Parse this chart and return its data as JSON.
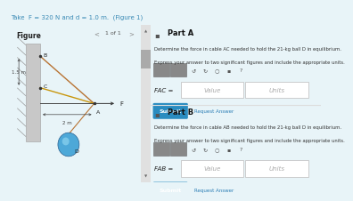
{
  "bg_color": "#e8f4f8",
  "header_bg": "#daeef6",
  "header_text": "Take  F = 320 N and d = 1.0 m.  (Figure 1)",
  "header_text_color": "#3a8ab5",
  "figure_label": "Figure",
  "nav_text": "1 of 1",
  "part_a_title": "Part A",
  "part_a_desc1": "Determine the force in cable AC needed to hold the 21-kg ball D in equilibrium.",
  "part_a_desc2": "Express your answer to two significant figures and include the appropriate units.",
  "part_a_label": "FAC =",
  "part_b_title": "Part B",
  "part_b_desc1": "Determine the force in cable AB needed to hold the 21-kg ball D in equilibrium.",
  "part_b_desc2": "Express your answer to two significant figures and include the appropriate units.",
  "part_b_label": "FAB =",
  "value_placeholder": "Value",
  "units_placeholder": "Units",
  "submit_text": "Submit",
  "request_text": "Request Answer",
  "wall_color": "#c8c8c8",
  "wall_edge": "#aaaaaa",
  "hatch_color": "#999999",
  "cable_AB_color": "#b87333",
  "cable_AC_color": "#c8960c",
  "cable_AD_color": "#b87333",
  "dim_color": "#444444",
  "ball_color_main": "#4da8d8",
  "ball_color_light": "#8dd4f0",
  "ball_edge": "#2a6090",
  "arrow_color": "#333333",
  "label_color": "#222222",
  "fig_panel_bg": "#ffffff",
  "right_panel_bg": "#f8f8f8",
  "divider_color": "#dddddd",
  "toolbar_box_bg": "#888888",
  "toolbar_box_edge": "#666666",
  "input_box_bg": "#ffffff",
  "input_box_edge": "#bbbbbb",
  "submit_btn_bg": "#2a8cc0",
  "request_link_color": "#2a7db5",
  "scrollbar_track": "#e0e0e0",
  "scrollbar_thumb": "#aaaaaa",
  "label_B": "B",
  "label_C": "C",
  "label_A": "A",
  "label_D": "D",
  "label_F": "F",
  "dim_15": "1.5 m",
  "dim_2": "2 m"
}
